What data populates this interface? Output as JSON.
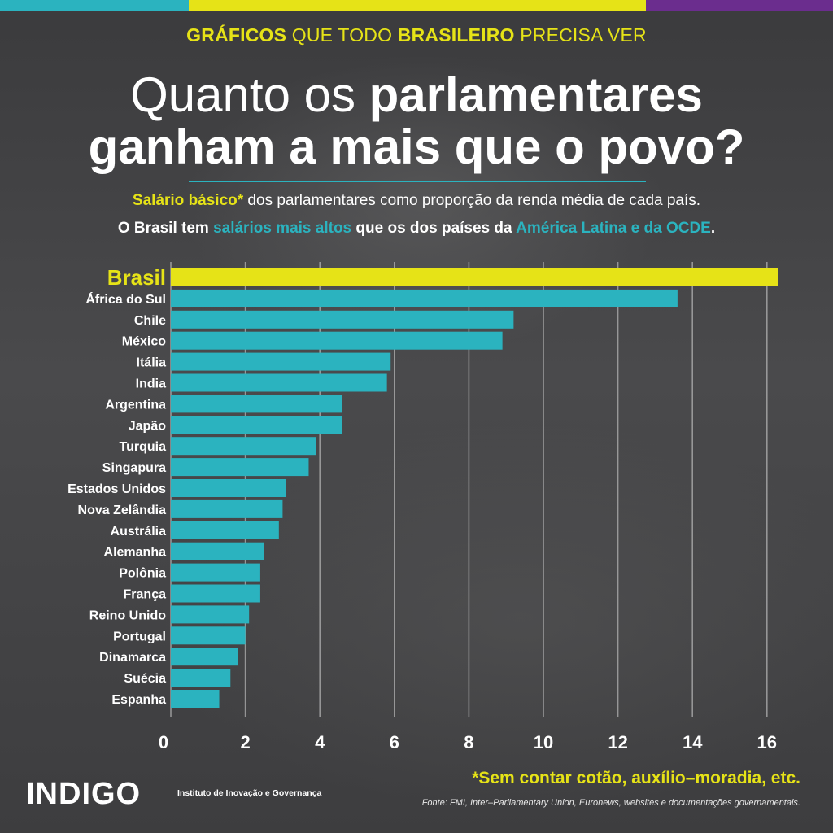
{
  "kicker": {
    "bold1": "GRÁFICOS",
    "light1": " QUE TODO ",
    "bold2": "BRASILEIRO",
    "light2": " PRECISA VER"
  },
  "title": {
    "line1_thin": "Quanto os ",
    "line1_bold": "parlamentares",
    "line2": "ganham a mais que o povo?"
  },
  "subtitle": {
    "l1_highlight": "Salário básico*",
    "l1_rest": " dos parlamentares como proporção da renda média de cada país.",
    "l2_a": "O Brasil tem ",
    "l2_highlight1": "salários mais altos",
    "l2_b": " que os dos países da ",
    "l2_highlight2": "América Latina e da OCDE",
    "l2_c": "."
  },
  "colors": {
    "teal": "#2bb3bf",
    "yellow": "#e6e317",
    "purple": "#6b2d8e",
    "background": "#3a3a3c"
  },
  "chart_data": {
    "type": "bar",
    "orientation": "horizontal",
    "categories": [
      "Brasil",
      "África do Sul",
      "Chile",
      "México",
      "Itália",
      "India",
      "Argentina",
      "Japão",
      "Turquia",
      "Singapura",
      "Estados Unidos",
      "Nova Zelândia",
      "Austrália",
      "Alemanha",
      "Polônia",
      "França",
      "Reino Unido",
      "Portugal",
      "Dinamarca",
      "Suécia",
      "Espanha"
    ],
    "values": [
      16.3,
      13.6,
      9.2,
      8.9,
      5.9,
      5.8,
      4.6,
      4.6,
      3.9,
      3.7,
      3.1,
      3.0,
      2.9,
      2.5,
      2.4,
      2.4,
      2.1,
      2.0,
      1.8,
      1.6,
      1.3
    ],
    "highlight": "Brasil",
    "xticks": [
      0,
      2,
      4,
      6,
      8,
      10,
      12,
      14,
      16
    ],
    "xlim": [
      0,
      16.5
    ],
    "grid": true,
    "colors": {
      "default": "#2bb3bf",
      "highlight": "#e6e317"
    }
  },
  "footnote": "*Sem contar cotão, auxílio–moradia, etc.",
  "source": "Fonte: FMI, Inter–Parliamentary Union, Euronews, websites e documentações governamentais.",
  "logo": {
    "name": "INDIGO",
    "tagline": "Instituto de Inovação e Governança"
  }
}
